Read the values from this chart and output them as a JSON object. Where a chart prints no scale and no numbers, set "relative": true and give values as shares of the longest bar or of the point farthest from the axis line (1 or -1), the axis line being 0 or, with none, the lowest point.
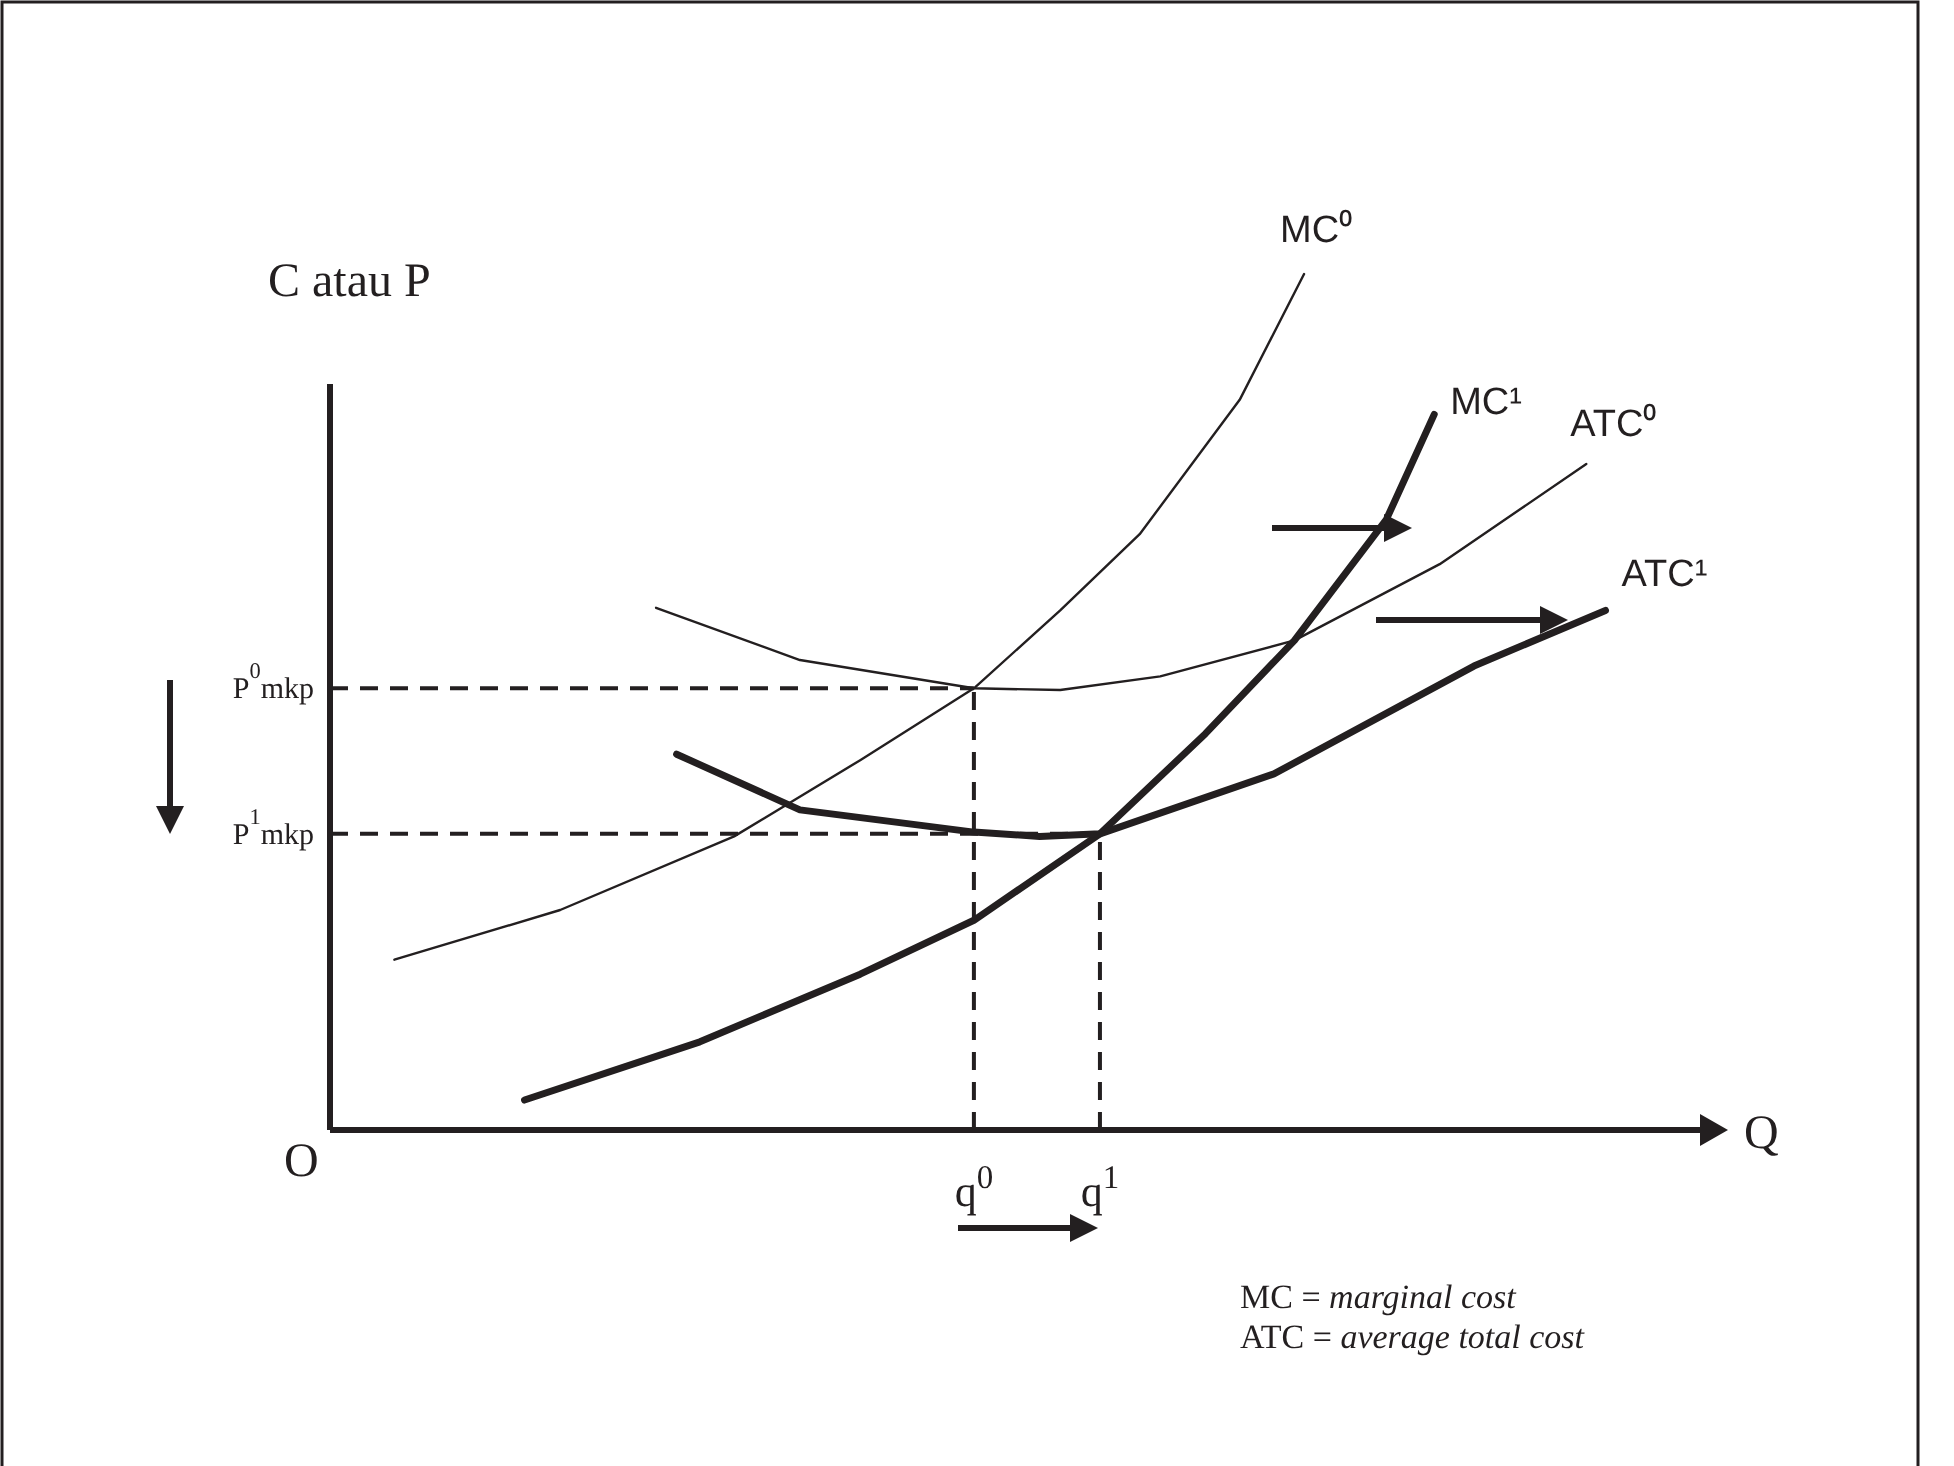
{
  "chart_data": {
    "type": "line",
    "relative": true,
    "xlabel": "Q",
    "ylabel": "C atau P",
    "xlim": [
      0,
      1
    ],
    "xticks": [
      {
        "value": 0.47,
        "label": "q$^{0}$"
      },
      {
        "value": 0.562,
        "label": "q$^{1}$"
      }
    ],
    "series": [
      {
        "name": "MC⁰",
        "color": "#231f20",
        "x": [
          0.047,
          0.168,
          0.295,
          0.387,
          0.47,
          0.533,
          0.591,
          0.664,
          0.711
        ],
        "values": [
          0.199,
          0.257,
          0.343,
          0.432,
          0.516,
          0.607,
          0.696,
          0.853,
          1
        ]
      },
      {
        "name": "ATC⁰",
        "color": "#231f20",
        "x": [
          0.238,
          0.343,
          0.47,
          0.533,
          0.606,
          0.704,
          0.81,
          0.917
        ],
        "values": [
          0.61,
          0.549,
          0.516,
          0.514,
          0.53,
          0.572,
          0.661,
          0.778
        ]
      },
      {
        "name": "MC¹",
        "color": "#231f20",
        "x": [
          0.142,
          0.27,
          0.387,
          0.47,
          0.562,
          0.639,
          0.704,
          0.771,
          0.806
        ],
        "values": [
          0.035,
          0.103,
          0.182,
          0.245,
          0.346,
          0.463,
          0.572,
          0.713,
          0.836
        ]
      },
      {
        "name": "ATC¹",
        "color": "#231f20",
        "x": [
          0.253,
          0.343,
          0.47,
          0.518,
          0.562,
          0.689,
          0.835,
          0.931
        ],
        "values": [
          0.439,
          0.374,
          0.348,
          0.343,
          0.346,
          0.416,
          0.542,
          0.607
        ]
      }
    ],
    "ref_lines": [
      {
        "axis": "x",
        "value": 0.47,
        "line_style": "dashed"
      },
      {
        "axis": "x",
        "value": 0.562,
        "line_style": "dashed"
      },
      {
        "axis": "y",
        "value": 0.516,
        "label": "P$^{0}$mkp",
        "line_style": "dashed"
      },
      {
        "axis": "y",
        "value": 0.346,
        "label": "P$^{1}$mkp",
        "line_style": "dashed"
      }
    ],
    "annotations": [
      "O",
      "MC  = marginal cost",
      "ATC = average total cost"
    ],
    "marker": "none",
    "line_style": "solid"
  }
}
